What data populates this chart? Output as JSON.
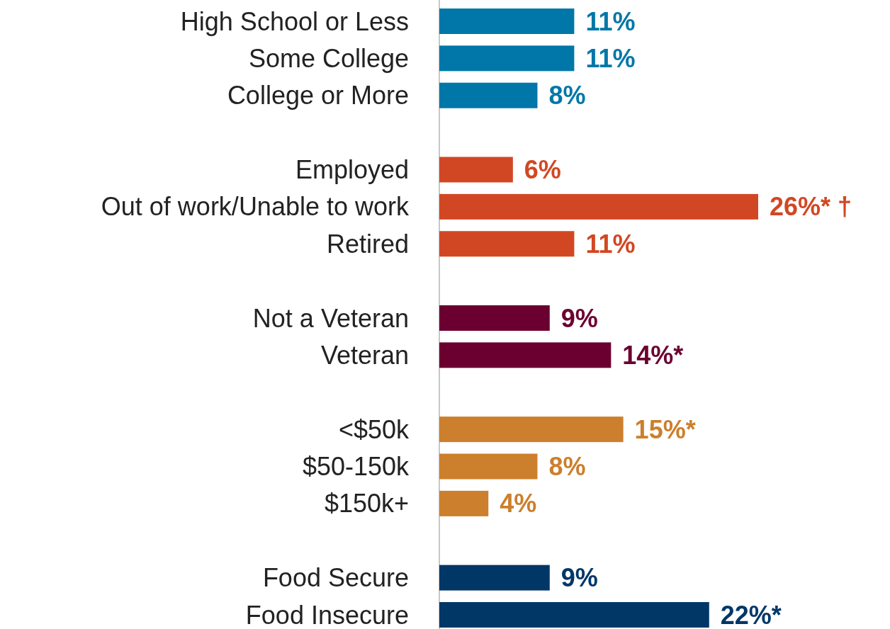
{
  "chart_data": {
    "type": "bar",
    "orientation": "horizontal",
    "categories": [
      "High School or Less",
      "Some College",
      "College or More",
      null,
      "Employed",
      "Out of work/Unable to work",
      "Retired",
      null,
      "Not a Veteran",
      "Veteran",
      null,
      "<$50k",
      "$50-150k",
      "$150k+",
      null,
      "Food Secure",
      "Food Insecure"
    ],
    "values": [
      11,
      11,
      8,
      null,
      6,
      26,
      11,
      null,
      9,
      14,
      null,
      15,
      8,
      4,
      null,
      9,
      22
    ],
    "colors": [
      "#0077a8",
      "#0077a8",
      "#0077a8",
      null,
      "#d24723",
      "#d24723",
      "#d24723",
      null,
      "#6b0030",
      "#6b0030",
      null,
      "#cc7f2c",
      "#cc7f2c",
      "#cc7f2c",
      null,
      "#003767",
      "#003767"
    ],
    "value_labels": [
      "11%",
      "11%",
      "8%",
      null,
      "6%",
      "26%* †",
      "11%",
      null,
      "9%",
      "14%*",
      null,
      "15%*",
      "8%",
      "4%",
      null,
      "9%",
      "22%*"
    ]
  }
}
